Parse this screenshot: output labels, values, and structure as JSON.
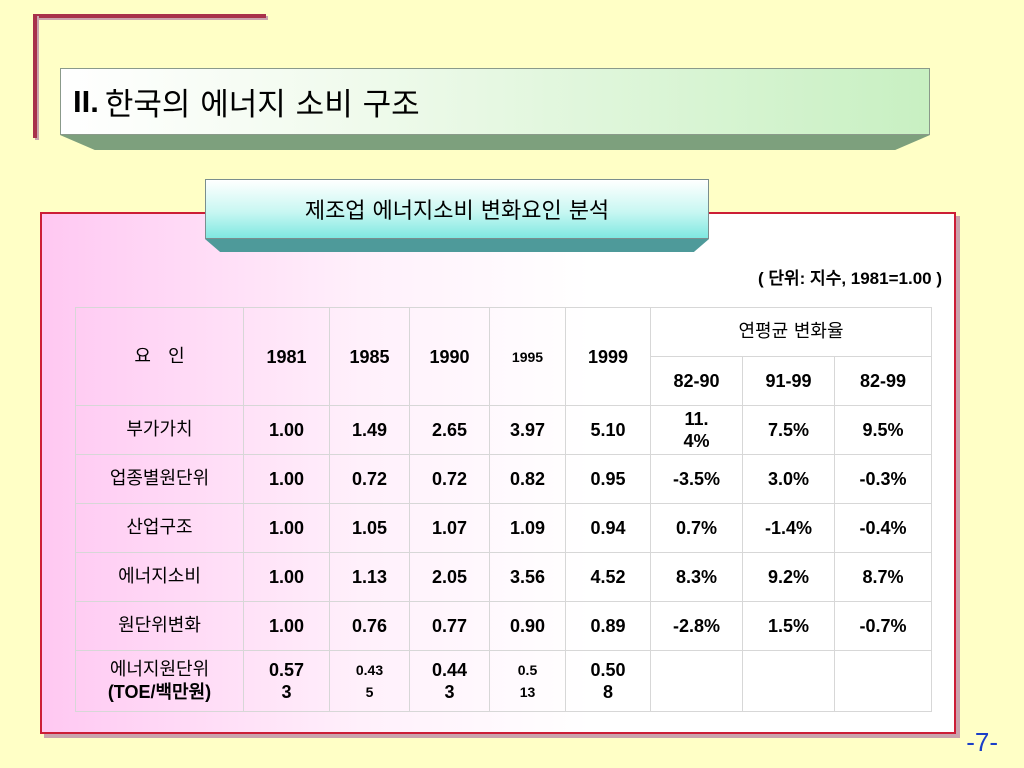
{
  "title": {
    "roman": "II.",
    "text": "한국의 에너지 소비 구조"
  },
  "subtitle": "제조업 에너지소비 변화요인 분석",
  "unit": "( 단위: 지수, 1981=1.00 )",
  "table": {
    "header": {
      "factor": "요   인",
      "y1981": "1981",
      "y1985": "1985",
      "y1990": "1990",
      "y1995": "1995",
      "y1999": "1999",
      "avg": "연평균 변화율",
      "p1": "82-90",
      "p2": "91-99",
      "p3": "82-99"
    },
    "rows": [
      {
        "name": "부가가치",
        "v": [
          "1.00",
          "1.49",
          "2.65",
          "3.97",
          "5.10",
          "11.4%",
          "7.5%",
          "9.5%"
        ]
      },
      {
        "name": "업종별원단위",
        "v": [
          "1.00",
          "0.72",
          "0.72",
          "0.82",
          "0.95",
          "-3.5%",
          "3.0%",
          "-0.3%"
        ]
      },
      {
        "name": "산업구조",
        "v": [
          "1.00",
          "1.05",
          "1.07",
          "1.09",
          "0.94",
          "0.7%",
          "-1.4%",
          "-0.4%"
        ]
      },
      {
        "name": "에너지소비",
        "v": [
          "1.00",
          "1.13",
          "2.05",
          "3.56",
          "4.52",
          "8.3%",
          "9.2%",
          "8.7%"
        ]
      },
      {
        "name": "원단위변화",
        "v": [
          "1.00",
          "0.76",
          "0.77",
          "0.90",
          "0.89",
          "-2.8%",
          "1.5%",
          "-0.7%"
        ]
      }
    ],
    "last": {
      "name1": "에너지원단위",
      "name2": "(TOE/백만원)",
      "v": [
        "0.573",
        "0.435",
        "0.443",
        "0.513",
        "0.508",
        "",
        "",
        ""
      ]
    }
  },
  "page_number": "-7-"
}
